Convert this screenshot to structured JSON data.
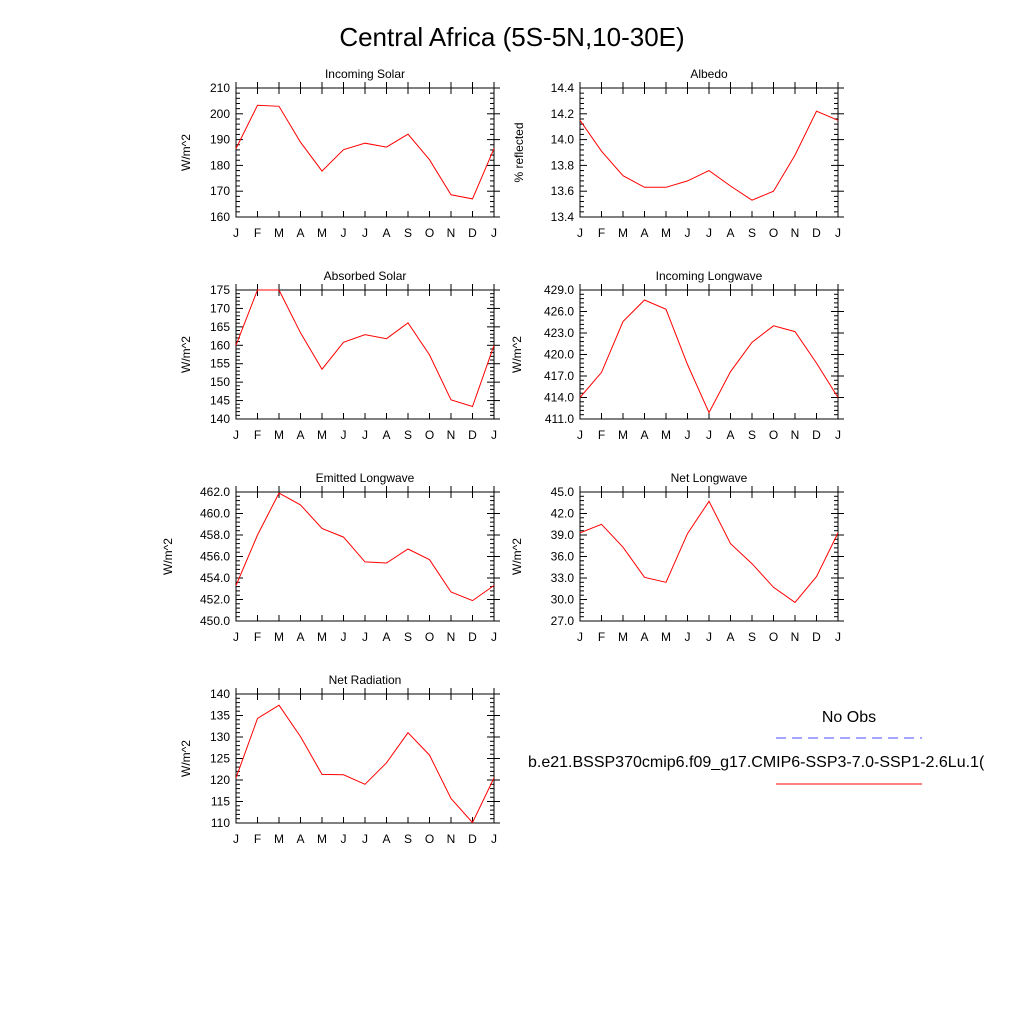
{
  "title": "Central Africa (5S-5N,10-30E)",
  "colors": {
    "model": "#ff0000",
    "obs": "#4b4bff"
  },
  "legend": {
    "obs_label": "No Obs",
    "model_label": "b.e21.BSSP370cmip6.f09_g17.CMIP6-SSP3-7.0-SSP1-2.6Lu.1("
  },
  "chart_data": [
    {
      "type": "line",
      "title": "Incoming Solar",
      "ylabel": "W/m^2",
      "categories": [
        "J",
        "F",
        "M",
        "A",
        "M",
        "J",
        "J",
        "A",
        "S",
        "O",
        "N",
        "D",
        "J"
      ],
      "ylim": [
        160,
        210
      ],
      "yticks": [
        160,
        170,
        180,
        190,
        200,
        210
      ],
      "yticklabels": [
        "160",
        "170",
        "180",
        "190",
        "200",
        "210"
      ],
      "series": [
        {
          "values": [
            186.5,
            203.3,
            202.9,
            189.0,
            177.8,
            186.1,
            188.6,
            187.1,
            192.1,
            182.2,
            168.6,
            167.0,
            186.5
          ]
        }
      ]
    },
    {
      "type": "line",
      "title": "Albedo",
      "ylabel": "% reflected",
      "categories": [
        "J",
        "F",
        "M",
        "A",
        "M",
        "J",
        "J",
        "A",
        "S",
        "O",
        "N",
        "D",
        "J"
      ],
      "ylim": [
        13.4,
        14.4
      ],
      "yticks": [
        13.4,
        13.6,
        13.8,
        14.0,
        14.2,
        14.4
      ],
      "yticklabels": [
        "13.4",
        "13.6",
        "13.8",
        "14.0",
        "14.2",
        "14.4"
      ],
      "series": [
        {
          "values": [
            14.15,
            13.91,
            13.72,
            13.63,
            13.63,
            13.68,
            13.76,
            13.64,
            13.53,
            13.6,
            13.88,
            14.22,
            14.15
          ]
        }
      ]
    },
    {
      "type": "line",
      "title": "Absorbed Solar",
      "ylabel": "W/m^2",
      "categories": [
        "J",
        "F",
        "M",
        "A",
        "M",
        "J",
        "J",
        "A",
        "S",
        "O",
        "N",
        "D",
        "J"
      ],
      "ylim": [
        140,
        175
      ],
      "yticks": [
        140,
        145,
        150,
        155,
        160,
        165,
        170,
        175
      ],
      "yticklabels": [
        "140",
        "145",
        "150",
        "155",
        "160",
        "165",
        "170",
        "175"
      ],
      "series": [
        {
          "values": [
            160.0,
            175.0,
            175.0,
            163.4,
            153.5,
            160.8,
            162.9,
            161.8,
            166.1,
            157.4,
            145.2,
            143.4,
            160.0
          ]
        }
      ]
    },
    {
      "type": "line",
      "title": "Incoming Longwave",
      "ylabel": "W/m^2",
      "categories": [
        "J",
        "F",
        "M",
        "A",
        "M",
        "J",
        "J",
        "A",
        "S",
        "O",
        "N",
        "D",
        "J"
      ],
      "ylim": [
        411.0,
        429.0
      ],
      "yticks": [
        411.0,
        414.0,
        417.0,
        420.0,
        423.0,
        426.0,
        429.0
      ],
      "yticklabels": [
        "411.0",
        "414.0",
        "417.0",
        "420.0",
        "423.0",
        "426.0",
        "429.0"
      ],
      "series": [
        {
          "values": [
            414.0,
            417.5,
            424.6,
            427.6,
            426.3,
            418.6,
            411.9,
            417.6,
            421.7,
            424.0,
            423.2,
            418.8,
            414.0
          ]
        }
      ]
    },
    {
      "type": "line",
      "title": "Emitted Longwave",
      "ylabel": "W/m^2",
      "categories": [
        "J",
        "F",
        "M",
        "A",
        "M",
        "J",
        "J",
        "A",
        "S",
        "O",
        "N",
        "D",
        "J"
      ],
      "ylim": [
        450.0,
        462.0
      ],
      "yticks": [
        450.0,
        452.0,
        454.0,
        456.0,
        458.0,
        460.0,
        462.0
      ],
      "yticklabels": [
        "450.0",
        "452.0",
        "454.0",
        "456.0",
        "458.0",
        "460.0",
        "462.0"
      ],
      "series": [
        {
          "values": [
            453.3,
            458.0,
            461.9,
            460.8,
            458.6,
            457.8,
            455.5,
            455.4,
            456.7,
            455.7,
            452.7,
            451.9,
            453.3
          ]
        }
      ]
    },
    {
      "type": "line",
      "title": "Net Longwave",
      "ylabel": "W/m^2",
      "categories": [
        "J",
        "F",
        "M",
        "A",
        "M",
        "J",
        "J",
        "A",
        "S",
        "O",
        "N",
        "D",
        "J"
      ],
      "ylim": [
        27.0,
        45.0
      ],
      "yticks": [
        27.0,
        30.0,
        33.0,
        36.0,
        39.0,
        42.0,
        45.0
      ],
      "yticklabels": [
        "27.0",
        "30.0",
        "33.0",
        "36.0",
        "39.0",
        "42.0",
        "45.0"
      ],
      "series": [
        {
          "values": [
            39.3,
            40.5,
            37.3,
            33.1,
            32.4,
            39.2,
            43.7,
            37.8,
            35.0,
            31.7,
            29.6,
            33.2,
            39.3
          ]
        }
      ]
    },
    {
      "type": "line",
      "title": "Net Radiation",
      "ylabel": "W/m^2",
      "categories": [
        "J",
        "F",
        "M",
        "A",
        "M",
        "J",
        "J",
        "A",
        "S",
        "O",
        "N",
        "D",
        "J"
      ],
      "ylim": [
        110,
        140
      ],
      "yticks": [
        110,
        115,
        120,
        125,
        130,
        135,
        140
      ],
      "yticklabels": [
        "110",
        "115",
        "120",
        "125",
        "130",
        "135",
        "140"
      ],
      "series": [
        {
          "values": [
            120.5,
            134.3,
            137.4,
            130.1,
            121.3,
            121.2,
            119.0,
            124.0,
            131.0,
            125.8,
            115.7,
            110.1,
            120.5
          ]
        }
      ]
    }
  ]
}
